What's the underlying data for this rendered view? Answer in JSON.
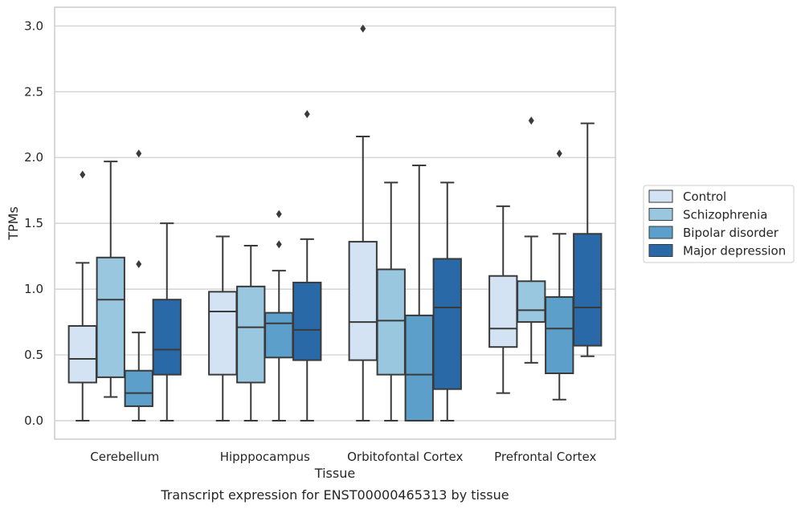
{
  "chart_data": {
    "type": "boxplot",
    "title": "",
    "caption": "Transcript expression for ENST00000465313 by tissue",
    "xlabel": "Tissue",
    "ylabel": "TPMs",
    "ylim": [
      -0.14,
      3.14
    ],
    "yticks": [
      "0.0",
      "0.5",
      "1.0",
      "1.5",
      "2.0",
      "2.5",
      "3.0"
    ],
    "grid": "horizontal",
    "legend_position": "right",
    "categories": [
      "Cerebellum",
      "Hipppocampus",
      "Orbitofontal Cortex",
      "Prefrontal Cortex"
    ],
    "series": [
      {
        "name": "Control",
        "color": "#d3e3f3",
        "boxes": [
          {
            "whislo": 0.0,
            "q1": 0.29,
            "med": 0.47,
            "q3": 0.72,
            "whishi": 1.2,
            "fliers": [
              1.87
            ]
          },
          {
            "whislo": 0.0,
            "q1": 0.35,
            "med": 0.83,
            "q3": 0.98,
            "whishi": 1.4,
            "fliers": []
          },
          {
            "whislo": 0.0,
            "q1": 0.46,
            "med": 0.75,
            "q3": 1.36,
            "whishi": 2.16,
            "fliers": [
              2.98
            ]
          },
          {
            "whislo": 0.21,
            "q1": 0.56,
            "med": 0.7,
            "q3": 1.1,
            "whishi": 1.63,
            "fliers": []
          }
        ]
      },
      {
        "name": "Schizophrenia",
        "color": "#9ac7e0",
        "boxes": [
          {
            "whislo": 0.18,
            "q1": 0.33,
            "med": 0.92,
            "q3": 1.24,
            "whishi": 1.97,
            "fliers": []
          },
          {
            "whislo": 0.0,
            "q1": 0.29,
            "med": 0.71,
            "q3": 1.02,
            "whishi": 1.33,
            "fliers": []
          },
          {
            "whislo": 0.0,
            "q1": 0.35,
            "med": 0.76,
            "q3": 1.15,
            "whishi": 1.81,
            "fliers": []
          },
          {
            "whislo": 0.44,
            "q1": 0.75,
            "med": 0.84,
            "q3": 1.06,
            "whishi": 1.4,
            "fliers": [
              2.28
            ]
          }
        ]
      },
      {
        "name": "Bipolar disorder",
        "color": "#5b9fca",
        "boxes": [
          {
            "whislo": 0.0,
            "q1": 0.11,
            "med": 0.21,
            "q3": 0.38,
            "whishi": 0.67,
            "fliers": [
              1.19,
              2.03
            ]
          },
          {
            "whislo": 0.0,
            "q1": 0.48,
            "med": 0.74,
            "q3": 0.82,
            "whishi": 1.14,
            "fliers": [
              1.34,
              1.57
            ]
          },
          {
            "whislo": 0.0,
            "q1": 0.0,
            "med": 0.35,
            "q3": 0.8,
            "whishi": 1.94,
            "fliers": []
          },
          {
            "whislo": 0.16,
            "q1": 0.36,
            "med": 0.7,
            "q3": 0.94,
            "whishi": 1.42,
            "fliers": [
              2.03
            ]
          }
        ]
      },
      {
        "name": "Major depression",
        "color": "#2a69a7",
        "boxes": [
          {
            "whislo": 0.0,
            "q1": 0.35,
            "med": 0.54,
            "q3": 0.92,
            "whishi": 1.5,
            "fliers": []
          },
          {
            "whislo": 0.0,
            "q1": 0.46,
            "med": 0.69,
            "q3": 1.05,
            "whishi": 1.38,
            "fliers": [
              2.33
            ]
          },
          {
            "whislo": 0.0,
            "q1": 0.24,
            "med": 0.86,
            "q3": 1.23,
            "whishi": 1.81,
            "fliers": []
          },
          {
            "whislo": 0.49,
            "q1": 0.57,
            "med": 0.86,
            "q3": 1.42,
            "whishi": 2.26,
            "fliers": []
          }
        ]
      }
    ]
  }
}
